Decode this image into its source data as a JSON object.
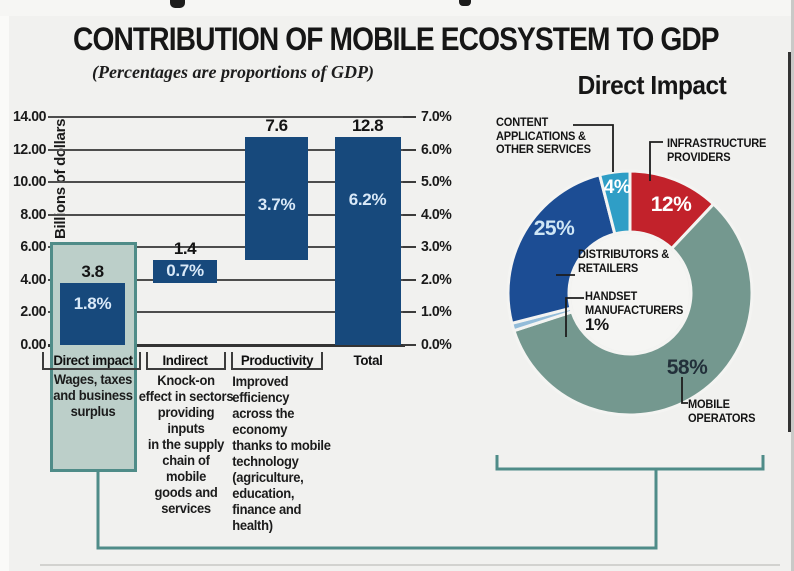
{
  "header": {
    "title": "CONTRIBUTION OF MOBILE ECOSYSTEM TO GDP",
    "subtitle": "(Percentages are proportions of GDP)"
  },
  "chart_data": [
    {
      "type": "bar",
      "subtype": "waterfall",
      "ylabel": "Billions of dollars",
      "ylim": [
        0,
        14
      ],
      "y2lim_percent": [
        0,
        7
      ],
      "grid": true,
      "yticks_left": [
        "14.00",
        "12.00",
        "10.00",
        "8.00",
        "6.00",
        "4.00",
        "2.00",
        "0.00"
      ],
      "yticks_right": [
        "7.0%",
        "6.0%",
        "5.0%",
        "4.0%",
        "3.0%",
        "2.0%",
        "1.0%",
        "0.0%"
      ],
      "categories": [
        "Direct impact",
        "Indirect",
        "Productivity",
        "Total"
      ],
      "bar_color": "#17497c",
      "pct_text_color": "#d9e9f8",
      "highlight_fill": "#bccfc9",
      "highlight_border": "#4f8c88",
      "bars": [
        {
          "category": "Direct impact",
          "start": 0,
          "end": 3.8,
          "value": 3.8,
          "value_label": "3.8",
          "pct_label": "1.8%",
          "highlighted": true,
          "description": "Wages, taxes\nand business\nsurplus"
        },
        {
          "category": "Indirect",
          "start": 3.8,
          "end": 5.2,
          "value": 1.4,
          "value_label": "1.4",
          "pct_label": "0.7%",
          "highlighted": false,
          "description": "Knock-on\neffect in sectors\nproviding\ninputs\nin the supply\nchain of\nmobile\ngoods and\nservices"
        },
        {
          "category": "Productivity",
          "start": 5.2,
          "end": 12.8,
          "value": 7.6,
          "value_label": "7.6",
          "pct_label": "3.7%",
          "highlighted": false,
          "description": "Improved efficiency\nacross the economy\nthanks to mobile\ntechnology\n(agriculture,\neducation,\nfinance and health)"
        },
        {
          "category": "Total",
          "start": 0,
          "end": 12.8,
          "value": 12.8,
          "value_label": "12.8",
          "pct_label": "6.2%",
          "highlighted": false,
          "description": ""
        }
      ]
    },
    {
      "type": "pie",
      "donut": true,
      "title": "Direct Impact",
      "connector_color": "#4f8c88",
      "slices": [
        {
          "label": "INFRASTRUCTURE\nPROVIDERS",
          "value": 12,
          "pct_label": "12%",
          "color": "#c2222b",
          "pct_text_color": "#ffffff"
        },
        {
          "label": "MOBILE\nOPERATORS",
          "value": 58,
          "pct_label": "58%",
          "color": "#74988f",
          "pct_text_color": "#22303a"
        },
        {
          "label": "HANDSET\nMANUFACTURERS",
          "value": 1,
          "pct_label": "1%",
          "color": "#93bcd9",
          "pct_text_color": "#141414"
        },
        {
          "label": "DISTRIBUTORS &\nRETAILERS",
          "value": 25,
          "pct_label": "25%",
          "color": "#1c4d94",
          "pct_text_color": "#cfe6f5"
        },
        {
          "label": "CONTENT\nAPPLICATIONS &\nOTHER SERVICES",
          "value": 4,
          "pct_label": "4%",
          "color": "#2f9ec6",
          "pct_text_color": "#ffffff"
        }
      ]
    }
  ]
}
